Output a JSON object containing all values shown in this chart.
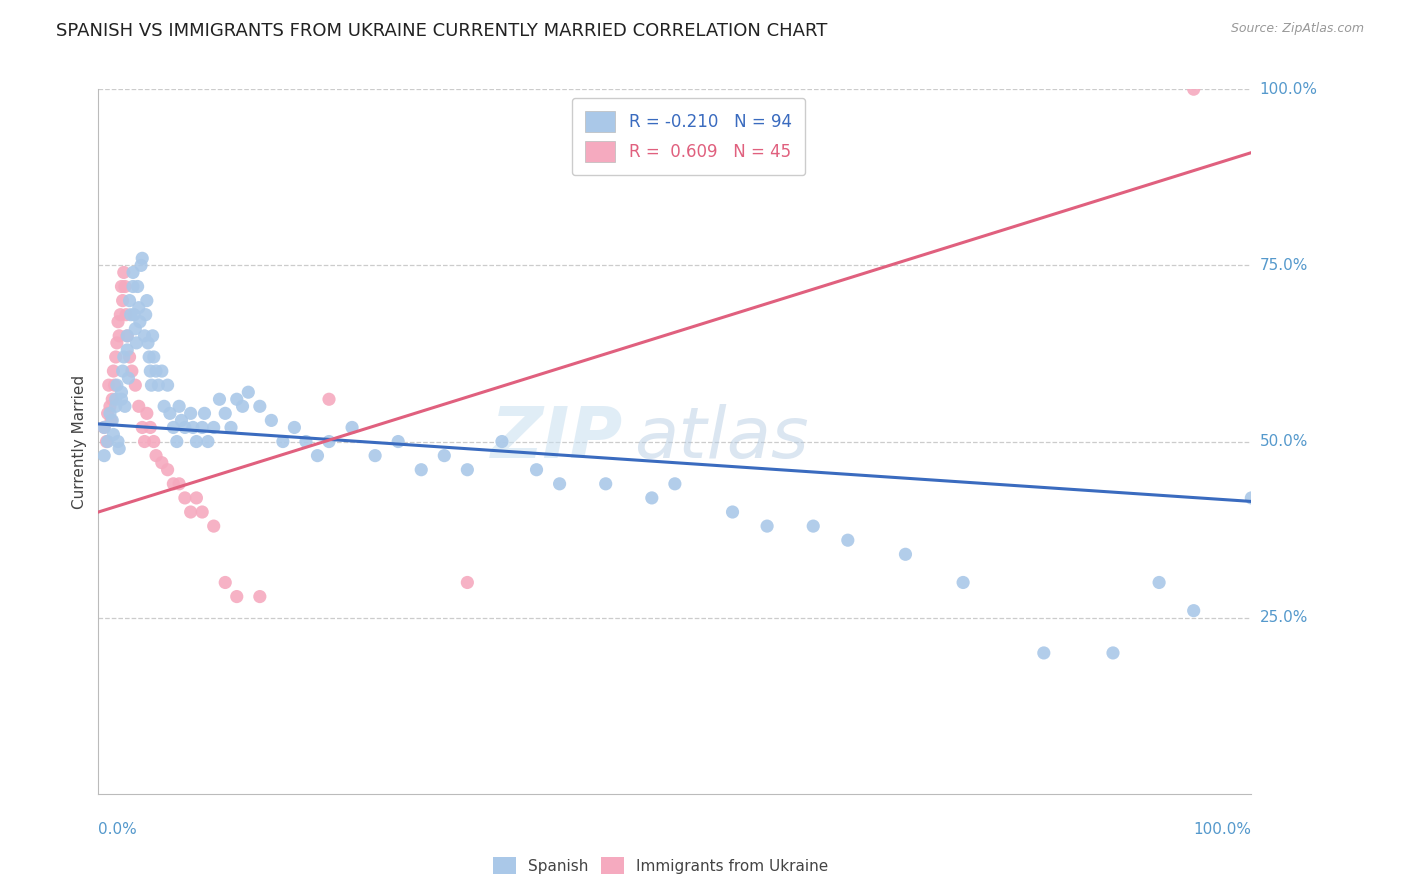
{
  "title": "SPANISH VS IMMIGRANTS FROM UKRAINE CURRENTLY MARRIED CORRELATION CHART",
  "source_text": "Source: ZipAtlas.com",
  "ylabel": "Currently Married",
  "xlim": [
    0.0,
    1.0
  ],
  "ylim": [
    0.0,
    1.0
  ],
  "ytick_positions": [
    0.25,
    0.5,
    0.75,
    1.0
  ],
  "ytick_labels_right": [
    "25.0%",
    "50.0%",
    "75.0%",
    "100.0%"
  ],
  "grid_color": "#cccccc",
  "background_color": "#ffffff",
  "watermark": "ZIPatlas",
  "legend_spanish_label": "R = -0.210   N = 94",
  "legend_ukraine_label": "R =  0.609   N = 45",
  "legend_bottom_spanish": "Spanish",
  "legend_bottom_ukraine": "Immigrants from Ukraine",
  "spanish_color": "#aac8e8",
  "ukraine_color": "#f5aabf",
  "spanish_line_color": "#3a6bbf",
  "ukraine_line_color": "#e0607e",
  "spanish_scatter_x": [
    0.005,
    0.008,
    0.01,
    0.012,
    0.013,
    0.015,
    0.015,
    0.016,
    0.017,
    0.018,
    0.02,
    0.02,
    0.021,
    0.022,
    0.023,
    0.025,
    0.025,
    0.026,
    0.027,
    0.028,
    0.03,
    0.03,
    0.031,
    0.032,
    0.033,
    0.034,
    0.035,
    0.036,
    0.037,
    0.038,
    0.04,
    0.041,
    0.042,
    0.043,
    0.044,
    0.045,
    0.046,
    0.047,
    0.048,
    0.05,
    0.052,
    0.055,
    0.057,
    0.06,
    0.062,
    0.065,
    0.068,
    0.07,
    0.072,
    0.075,
    0.08,
    0.082,
    0.085,
    0.09,
    0.092,
    0.095,
    0.1,
    0.105,
    0.11,
    0.115,
    0.12,
    0.125,
    0.13,
    0.14,
    0.15,
    0.16,
    0.17,
    0.18,
    0.19,
    0.2,
    0.22,
    0.24,
    0.26,
    0.28,
    0.3,
    0.32,
    0.35,
    0.38,
    0.4,
    0.44,
    0.48,
    0.5,
    0.55,
    0.58,
    0.62,
    0.65,
    0.7,
    0.75,
    0.82,
    0.88,
    0.92,
    0.95,
    1.0,
    0.005
  ],
  "spanish_scatter_y": [
    0.52,
    0.5,
    0.54,
    0.53,
    0.51,
    0.56,
    0.55,
    0.58,
    0.5,
    0.49,
    0.57,
    0.56,
    0.6,
    0.62,
    0.55,
    0.65,
    0.63,
    0.59,
    0.7,
    0.68,
    0.72,
    0.74,
    0.68,
    0.66,
    0.64,
    0.72,
    0.69,
    0.67,
    0.75,
    0.76,
    0.65,
    0.68,
    0.7,
    0.64,
    0.62,
    0.6,
    0.58,
    0.65,
    0.62,
    0.6,
    0.58,
    0.6,
    0.55,
    0.58,
    0.54,
    0.52,
    0.5,
    0.55,
    0.53,
    0.52,
    0.54,
    0.52,
    0.5,
    0.52,
    0.54,
    0.5,
    0.52,
    0.56,
    0.54,
    0.52,
    0.56,
    0.55,
    0.57,
    0.55,
    0.53,
    0.5,
    0.52,
    0.5,
    0.48,
    0.5,
    0.52,
    0.48,
    0.5,
    0.46,
    0.48,
    0.46,
    0.5,
    0.46,
    0.44,
    0.44,
    0.42,
    0.44,
    0.4,
    0.38,
    0.38,
    0.36,
    0.34,
    0.3,
    0.2,
    0.2,
    0.3,
    0.26,
    0.42,
    0.48
  ],
  "ukraine_scatter_x": [
    0.005,
    0.007,
    0.008,
    0.009,
    0.01,
    0.011,
    0.012,
    0.013,
    0.014,
    0.015,
    0.016,
    0.017,
    0.018,
    0.019,
    0.02,
    0.021,
    0.022,
    0.023,
    0.024,
    0.025,
    0.027,
    0.029,
    0.032,
    0.035,
    0.038,
    0.04,
    0.042,
    0.045,
    0.048,
    0.05,
    0.055,
    0.06,
    0.065,
    0.07,
    0.075,
    0.08,
    0.085,
    0.09,
    0.1,
    0.11,
    0.12,
    0.14,
    0.2,
    0.32,
    0.95
  ],
  "ukraine_scatter_y": [
    0.52,
    0.5,
    0.54,
    0.58,
    0.55,
    0.53,
    0.56,
    0.6,
    0.58,
    0.62,
    0.64,
    0.67,
    0.65,
    0.68,
    0.72,
    0.7,
    0.74,
    0.72,
    0.68,
    0.65,
    0.62,
    0.6,
    0.58,
    0.55,
    0.52,
    0.5,
    0.54,
    0.52,
    0.5,
    0.48,
    0.47,
    0.46,
    0.44,
    0.44,
    0.42,
    0.4,
    0.42,
    0.4,
    0.38,
    0.3,
    0.28,
    0.28,
    0.56,
    0.3,
    1.0
  ],
  "spanish_line_x": [
    0.0,
    1.0
  ],
  "spanish_line_y": [
    0.525,
    0.415
  ],
  "ukraine_line_x": [
    0.0,
    1.0
  ],
  "ukraine_line_y": [
    0.4,
    0.91
  ],
  "title_fontsize": 13,
  "axis_label_fontsize": 11,
  "tick_fontsize": 11,
  "legend_fontsize": 12,
  "marker_size": 90
}
